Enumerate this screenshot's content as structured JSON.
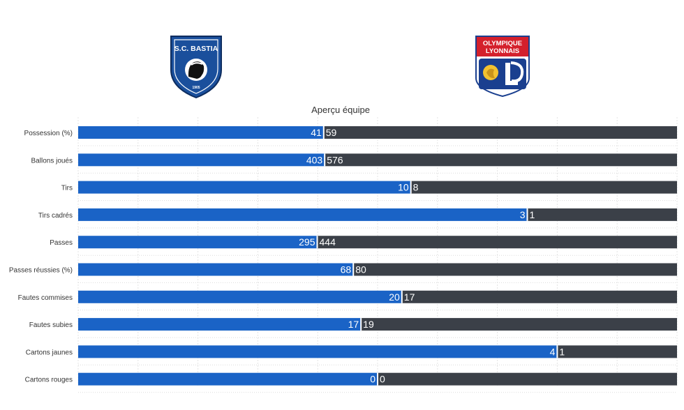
{
  "chart_data": {
    "type": "bar",
    "stacked": true,
    "orientation": "horizontal",
    "normalized": true,
    "title": "Aperçu équipe",
    "categories": [
      "Possession (%)",
      "Ballons joués",
      "Tirs",
      "Tirs cadrés",
      "Passes",
      "Passes réussies (%)",
      "Fautes commises",
      "Fautes subies",
      "Cartons jaunes",
      "Cartons rouges"
    ],
    "series": [
      {
        "values": [
          41,
          403,
          10,
          3,
          295,
          68,
          20,
          17,
          4,
          0
        ],
        "color": "#1a63c6"
      },
      {
        "values": [
          59,
          576,
          8,
          1,
          444,
          80,
          17,
          19,
          1,
          0
        ],
        "color": "#3b4048"
      }
    ],
    "grid": true,
    "legend": "none"
  },
  "teams": {
    "home": {
      "crest_text": "S.C. BASTIA",
      "crest_year": "1905",
      "crest_icon": "moor-head-shield-icon",
      "color": "#1a4f9c"
    },
    "away": {
      "crest_text_1": "OLYMPIQUE",
      "crest_text_2": "LYONNAIS",
      "crest_icon": "lion-ol-shield-icon",
      "color": "#d4202c"
    }
  }
}
